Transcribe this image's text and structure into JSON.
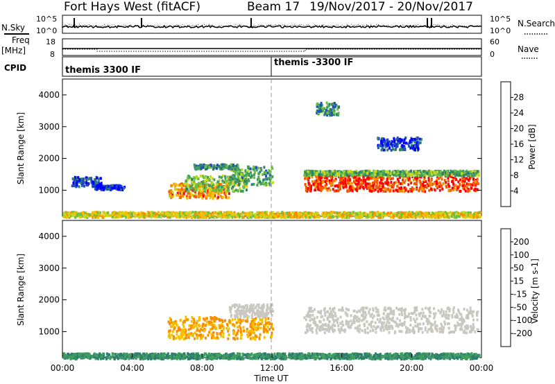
{
  "header": {
    "title": "Fort Hays West (fitACF)",
    "beam": "Beam 17",
    "date_range": "19/Nov/2017 - 20/Nov/2017"
  },
  "top_panels": {
    "nsky_label": "N.Sky",
    "nsearch_label": "N.Search",
    "freq_label_1": "Freq",
    "freq_label_2": "[MHz]",
    "nave_label": "Nave",
    "cpid_label": "CPID",
    "left_ticks_noise": [
      "10^5",
      "10^0"
    ],
    "right_ticks_noise": [
      "10^5",
      "10^0"
    ],
    "left_ticks_freq": [
      "18",
      "8"
    ],
    "right_ticks_freq": [
      "60",
      "0"
    ],
    "cpid_segments": [
      {
        "label": "themis 3300 IF",
        "start_hour": 0
      },
      {
        "label": "themis -3300 IF",
        "start_hour": 12
      }
    ]
  },
  "chart_data": [
    {
      "type": "heatmap",
      "name": "power",
      "ylabel": "Slant Range [km]",
      "xlabel": "",
      "colorbar_label": "Power [dB]",
      "colorbar_ticks": [
        "4",
        "8",
        "12",
        "16",
        "20",
        "24",
        "28"
      ],
      "colorbar_range": [
        0,
        32
      ],
      "colors": [
        "#0000ff",
        "#1f4fbf",
        "#2e7d6e",
        "#3f9f5f",
        "#6fc040",
        "#c8d820",
        "#f4c000",
        "#f79000",
        "#f05a00",
        "#ff0000"
      ],
      "xlim_hours": [
        0,
        24
      ],
      "ylim_km": [
        180,
        4500
      ],
      "yticks": [
        "1000",
        "2000",
        "3000",
        "4000"
      ],
      "regions": [
        {
          "t0": 0.5,
          "t1": 2.2,
          "r0": 1150,
          "r1": 1450,
          "level": 0.15
        },
        {
          "t0": 1.8,
          "t1": 3.5,
          "r0": 1050,
          "r1": 1200,
          "level": 0.1
        },
        {
          "t0": 6.0,
          "t1": 9.5,
          "r0": 780,
          "r1": 1250,
          "level": 0.75
        },
        {
          "t0": 7.0,
          "t1": 10.5,
          "r0": 1000,
          "r1": 1500,
          "level": 0.45
        },
        {
          "t0": 9.5,
          "t1": 12.0,
          "r0": 1200,
          "r1": 1800,
          "level": 0.35
        },
        {
          "t0": 7.5,
          "t1": 10.0,
          "r0": 1700,
          "r1": 1850,
          "level": 0.3
        },
        {
          "t0": 13.8,
          "t1": 23.8,
          "r0": 1000,
          "r1": 1500,
          "level": 0.9
        },
        {
          "t0": 13.8,
          "t1": 23.8,
          "r0": 1500,
          "r1": 1650,
          "level": 0.4
        },
        {
          "t0": 14.5,
          "t1": 15.8,
          "r0": 3400,
          "r1": 3800,
          "level": 0.3
        },
        {
          "t0": 18.0,
          "t1": 20.5,
          "r0": 2300,
          "r1": 2700,
          "level": 0.1
        },
        {
          "t0": 0.0,
          "t1": 23.9,
          "r0": 180,
          "r1": 350,
          "level": 0.6
        }
      ]
    },
    {
      "type": "heatmap",
      "name": "velocity",
      "ylabel": "Slant Range [km]",
      "xlabel": "Time UT",
      "colorbar_label": "Velocity [m s-1]",
      "colorbar_ticks": [
        "200",
        "100",
        "50",
        "15",
        "-15",
        "-50",
        "-100",
        "-200"
      ],
      "colors": [
        "#1f4fbf",
        "#2e7d6e",
        "#3f9f5f",
        "#6fc040",
        "#c8c8c0",
        "#f4c000",
        "#f79000",
        "#f05a00",
        "#ff0000"
      ],
      "xlim_hours": [
        0,
        24
      ],
      "ylim_km": [
        180,
        4500
      ],
      "xticks": [
        "00:00",
        "04:00",
        "08:00",
        "12:00",
        "16:00",
        "20:00",
        "00:00"
      ],
      "yticks": [
        "1000",
        "2000",
        "3000",
        "4000"
      ],
      "regions": [
        {
          "t0": 6.0,
          "t1": 12.0,
          "r0": 800,
          "r1": 1500,
          "vel": -50
        },
        {
          "t0": 9.5,
          "t1": 12.0,
          "r0": 1500,
          "r1": 1900,
          "vel": 0
        },
        {
          "t0": 13.8,
          "t1": 23.8,
          "r0": 1000,
          "r1": 1800,
          "vel": 0
        },
        {
          "t0": 0.0,
          "t1": 23.9,
          "r0": 180,
          "r1": 350,
          "vel": 50
        }
      ]
    }
  ]
}
